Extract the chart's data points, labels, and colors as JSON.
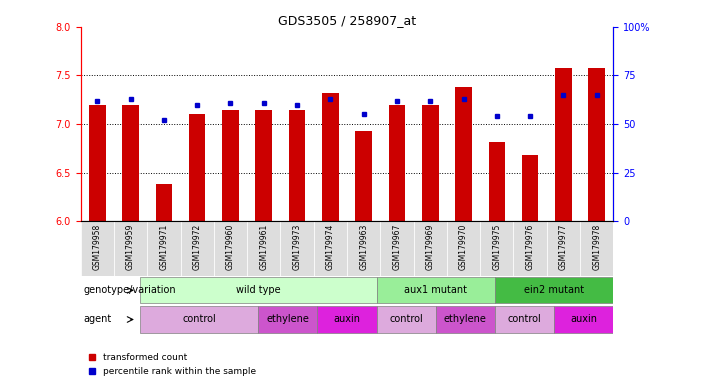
{
  "title": "GDS3505 / 258907_at",
  "samples": [
    "GSM179958",
    "GSM179959",
    "GSM179971",
    "GSM179972",
    "GSM179960",
    "GSM179961",
    "GSM179973",
    "GSM179974",
    "GSM179963",
    "GSM179967",
    "GSM179969",
    "GSM179970",
    "GSM179975",
    "GSM179976",
    "GSM179977",
    "GSM179978"
  ],
  "bar_values": [
    7.2,
    7.2,
    6.38,
    7.1,
    7.15,
    7.15,
    7.15,
    7.32,
    6.93,
    7.2,
    7.2,
    7.38,
    6.82,
    6.68,
    7.58,
    7.58
  ],
  "dot_values": [
    62,
    63,
    52,
    60,
    61,
    61,
    60,
    63,
    55,
    62,
    62,
    63,
    54,
    54,
    65,
    65
  ],
  "ylim_left": [
    6,
    8
  ],
  "ylim_right": [
    0,
    100
  ],
  "yticks_left": [
    6.0,
    6.5,
    7.0,
    7.5,
    8.0
  ],
  "yticks_right": [
    0,
    25,
    50,
    75,
    100
  ],
  "ytick_labels_right": [
    "0",
    "25",
    "50",
    "75",
    "100%"
  ],
  "bar_color": "#cc0000",
  "dot_color": "#0000cc",
  "grid_values": [
    6.5,
    7.0,
    7.5
  ],
  "genotype_groups": [
    {
      "label": "wild type",
      "start": 0,
      "end": 8,
      "color": "#ccffcc"
    },
    {
      "label": "aux1 mutant",
      "start": 8,
      "end": 12,
      "color": "#99ee99"
    },
    {
      "label": "ein2 mutant",
      "start": 12,
      "end": 16,
      "color": "#44bb44"
    }
  ],
  "agent_groups": [
    {
      "label": "control",
      "start": 0,
      "end": 4,
      "color": "#ddaadd"
    },
    {
      "label": "ethylene",
      "start": 4,
      "end": 6,
      "color": "#cc55cc"
    },
    {
      "label": "auxin",
      "start": 6,
      "end": 8,
      "color": "#dd22dd"
    },
    {
      "label": "control",
      "start": 8,
      "end": 10,
      "color": "#ddaadd"
    },
    {
      "label": "ethylene",
      "start": 10,
      "end": 12,
      "color": "#cc55cc"
    },
    {
      "label": "control",
      "start": 12,
      "end": 14,
      "color": "#ddaadd"
    },
    {
      "label": "auxin",
      "start": 14,
      "end": 16,
      "color": "#dd22dd"
    }
  ],
  "legend_bar_label": "transformed count",
  "legend_dot_label": "percentile rank within the sample",
  "xlabel_genotype": "genotype/variation",
  "xlabel_agent": "agent"
}
